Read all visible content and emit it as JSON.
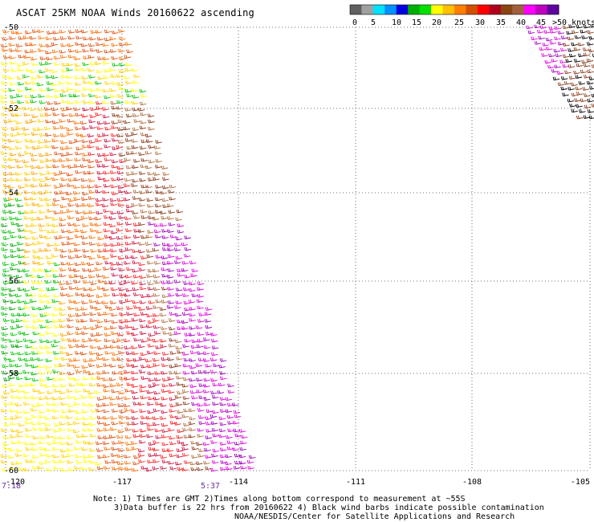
{
  "title": "ASCAT 25KM NOAA Winds 20160622 ascending",
  "legend": {
    "colors": [
      "#606060",
      "#a0a0a0",
      "#00e0ff",
      "#0090ff",
      "#0000e0",
      "#00b000",
      "#00e000",
      "#ffff00",
      "#ffc000",
      "#ff7f00",
      "#d05000",
      "#ff0000",
      "#b00020",
      "#8b4513",
      "#a06040",
      "#ff00ff",
      "#c000c0",
      "#6000a0"
    ],
    "labels": [
      "0",
      "5",
      "10",
      "15",
      "20",
      "25",
      "30",
      "35",
      "40",
      "45",
      ">50 knots"
    ]
  },
  "map": {
    "lat_labels": [
      "-50",
      "-52",
      "-54",
      "-56",
      "-58",
      "-60"
    ],
    "lon_labels": [
      "-120",
      "-117",
      "-114",
      "-111",
      "-108",
      "-105"
    ],
    "pass_times": [
      {
        "text": "7:18",
        "color": "#6b2fa0"
      },
      {
        "text": "5:37",
        "color": "#6b2fa0"
      }
    ]
  },
  "notes": {
    "line1": "Note: 1) Times are GMT 2)Times along bottom correspond to measurement at ~55S",
    "line2": "3)Data buffer is 22 hrs from 20160622 4) Black wind barbs indicate possible contamination",
    "line3": "NOAA/NESDIS/Center for Satellite Applications and Research"
  }
}
